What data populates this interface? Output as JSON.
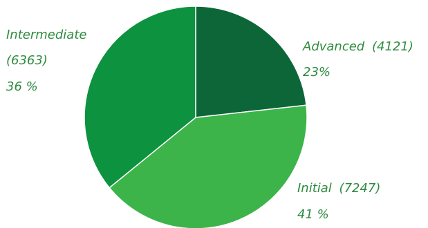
{
  "chart_data": {
    "type": "pie",
    "title": "",
    "slices": [
      {
        "name": "Advanced",
        "count_text": "(4121)",
        "pct_text": "23%",
        "value": 4121,
        "color": "#0c6638"
      },
      {
        "name": "Initial",
        "count_text": "(7247)",
        "pct_text": "41 %",
        "value": 7247,
        "color": "#3cb44a"
      },
      {
        "name": "Intermediate",
        "count_text": "(6363)",
        "pct_text": "36 %",
        "value": 6363,
        "color": "#0d923f"
      }
    ]
  }
}
